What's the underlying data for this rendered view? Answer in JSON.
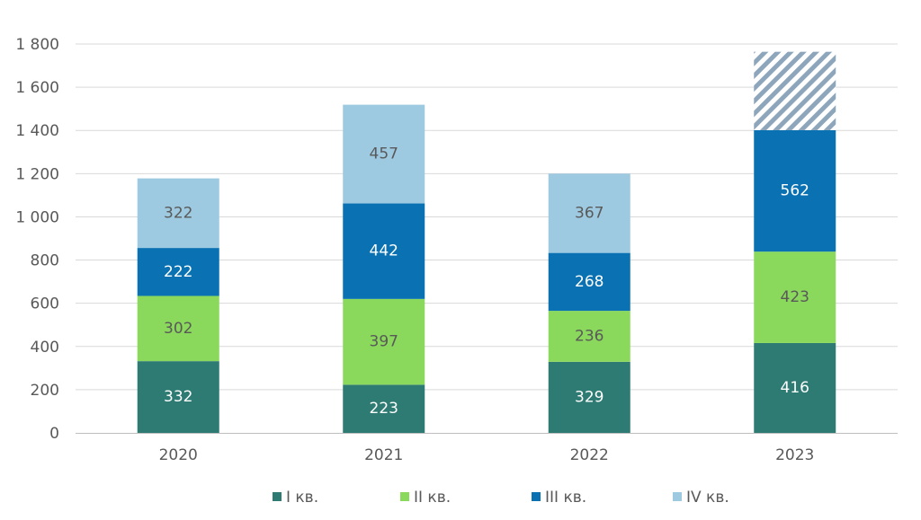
{
  "chart_data": {
    "type": "bar",
    "stacked": true,
    "categories": [
      "2020",
      "2021",
      "2022",
      "2023"
    ],
    "series": [
      {
        "name": "I кв.",
        "color": "#2e7b73",
        "values": [
          332,
          223,
          329,
          416
        ]
      },
      {
        "name": "II кв.",
        "color": "#8ad95c",
        "values": [
          302,
          397,
          236,
          423
        ]
      },
      {
        "name": "III кв.",
        "color": "#0a72b3",
        "values": [
          222,
          442,
          268,
          562
        ]
      },
      {
        "name": "IV кв.",
        "color": "#9ecae1",
        "values": [
          322,
          457,
          367,
          null
        ]
      }
    ],
    "forecast": {
      "category": "2023",
      "value": 363,
      "pattern": "diagonal-hatch",
      "color": "#8ea6bb"
    },
    "yticks": [
      0,
      200,
      400,
      600,
      800,
      1000,
      1200,
      1400,
      1600,
      1800
    ],
    "ytick_labels": [
      "0",
      "200",
      "400",
      "600",
      "800",
      "1 000",
      "1 200",
      "1 400",
      "1 600",
      "1 800"
    ],
    "ylim": [
      0,
      1800
    ],
    "grid": true,
    "legend": "bottom",
    "label_colors": {
      "dark": "#ffffff",
      "light": "#595959"
    }
  }
}
